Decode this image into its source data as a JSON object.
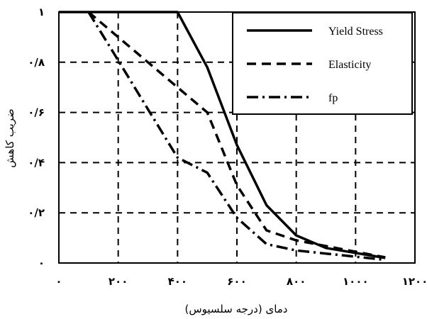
{
  "chart_data": {
    "type": "line",
    "xlabel": "دمای (درجه سلسیوس)",
    "ylabel": "ضریب کاهش",
    "xlim": [
      0,
      1200
    ],
    "ylim": [
      0,
      1
    ],
    "grid": true,
    "legend_position": "top-right",
    "x_ticks": [
      0,
      200,
      400,
      600,
      800,
      1000,
      1200
    ],
    "x_tick_labels": [
      "۰",
      "۲۰۰",
      "۴۰۰",
      "۶۰۰",
      "۸۰۰",
      "۱۰۰۰",
      "۱۲۰۰"
    ],
    "y_ticks": [
      0,
      0.2,
      0.4,
      0.6,
      0.8,
      1
    ],
    "y_tick_labels": [
      "۰",
      "۰/۲",
      "۰/۴",
      "۰/۶",
      "۰/۸",
      "۱"
    ],
    "series": [
      {
        "name": "Yield Stress",
        "dash": "solid",
        "x": [
          0,
          400,
          500,
          600,
          700,
          800,
          900,
          1000,
          1100
        ],
        "y": [
          1,
          1,
          0.78,
          0.47,
          0.23,
          0.11,
          0.06,
          0.04,
          0.02
        ]
      },
      {
        "name": "Elasticity",
        "dash": "dashed",
        "x": [
          100,
          200,
          300,
          400,
          500,
          600,
          700,
          800,
          900,
          1000,
          1100
        ],
        "y": [
          1,
          0.9,
          0.8,
          0.7,
          0.6,
          0.31,
          0.13,
          0.09,
          0.0675,
          0.045,
          0.0225
        ]
      },
      {
        "name": "fp",
        "dash": "dashdot",
        "x": [
          100,
          200,
          300,
          400,
          500,
          600,
          700,
          800,
          900,
          1000,
          1100
        ],
        "y": [
          1,
          0.807,
          0.613,
          0.42,
          0.36,
          0.18,
          0.075,
          0.05,
          0.0375,
          0.025,
          0.0125
        ]
      }
    ]
  }
}
